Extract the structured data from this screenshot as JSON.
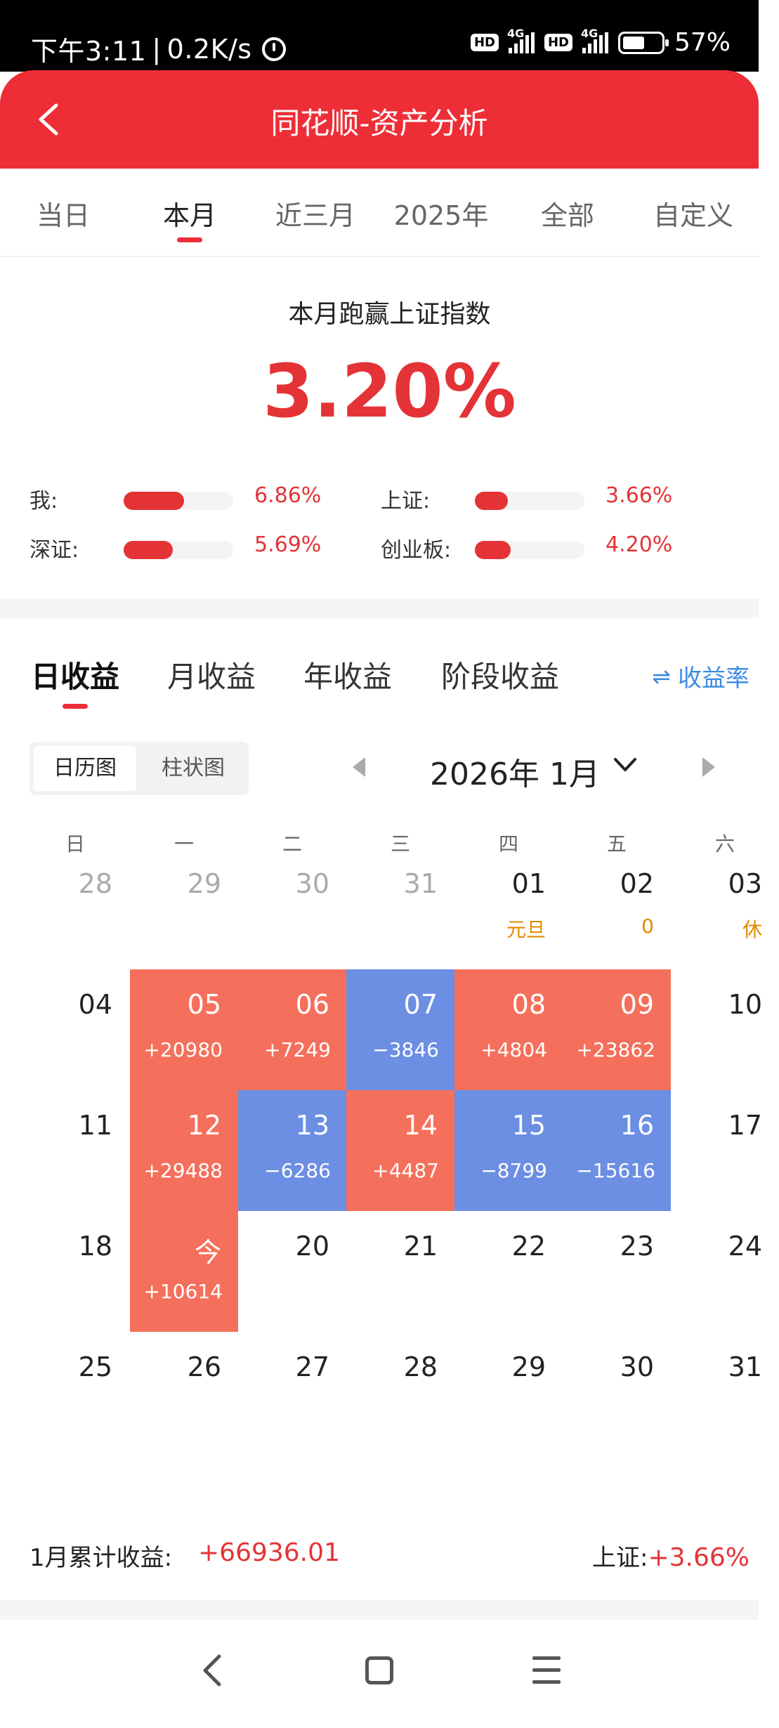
{
  "status_bar": {
    "time": "下午3:11",
    "separator": "|",
    "speed": "0.2K/s",
    "hd_label": "HD",
    "network_label": "4G",
    "battery_percent": "57%"
  },
  "header": {
    "title": "同花顺-资产分析"
  },
  "period_tabs": [
    "当日",
    "本月",
    "近三月",
    "2025年",
    "全部",
    "自定义"
  ],
  "period_active": "本月",
  "summary": {
    "heading": "本月跑赢上证指数",
    "value": "3.20%",
    "rows": [
      {
        "label": "我:",
        "value": "6.86%",
        "fill": 0.55
      },
      {
        "label": "上证:",
        "value": "3.66%",
        "fill": 0.3
      },
      {
        "label": "深证:",
        "value": "5.69%",
        "fill": 0.45
      },
      {
        "label": "创业板:",
        "value": "4.20%",
        "fill": 0.33
      }
    ]
  },
  "profit_tabs": [
    "日收益",
    "月收益",
    "年收益",
    "阶段收益"
  ],
  "profit_active": "日收益",
  "rate_toggle": {
    "icon": "swap-icon",
    "label": "收益率"
  },
  "view_toggle": [
    "日历图",
    "柱状图"
  ],
  "view_active": "日历图",
  "month_label": "2026年 1月",
  "weekdays": [
    "日",
    "一",
    "二",
    "三",
    "四",
    "五",
    "六"
  ],
  "calendar": [
    [
      {
        "num": "28",
        "muted": true
      },
      {
        "num": "29",
        "muted": true
      },
      {
        "num": "30",
        "muted": true
      },
      {
        "num": "31",
        "muted": true
      },
      {
        "num": "01",
        "sub": "元旦"
      },
      {
        "num": "02",
        "sub": "0"
      },
      {
        "num": "03",
        "sub": "休"
      }
    ],
    [
      {
        "num": "04"
      },
      {
        "num": "05",
        "pnl": "+20980",
        "dir": "up"
      },
      {
        "num": "06",
        "pnl": "+7249",
        "dir": "up"
      },
      {
        "num": "07",
        "pnl": "−3846",
        "dir": "down"
      },
      {
        "num": "08",
        "pnl": "+4804",
        "dir": "up"
      },
      {
        "num": "09",
        "pnl": "+23862",
        "dir": "up"
      },
      {
        "num": "10"
      }
    ],
    [
      {
        "num": "11"
      },
      {
        "num": "12",
        "pnl": "+29488",
        "dir": "up"
      },
      {
        "num": "13",
        "pnl": "−6286",
        "dir": "down"
      },
      {
        "num": "14",
        "pnl": "+4487",
        "dir": "up"
      },
      {
        "num": "15",
        "pnl": "−8799",
        "dir": "down"
      },
      {
        "num": "16",
        "pnl": "−15616",
        "dir": "down"
      },
      {
        "num": "17"
      }
    ],
    [
      {
        "num": "18"
      },
      {
        "num": "今",
        "pnl": "+10614",
        "dir": "up"
      },
      {
        "num": "20"
      },
      {
        "num": "21"
      },
      {
        "num": "22"
      },
      {
        "num": "23"
      },
      {
        "num": "24"
      }
    ],
    [
      {
        "num": "25"
      },
      {
        "num": "26"
      },
      {
        "num": "27"
      },
      {
        "num": "28"
      },
      {
        "num": "29"
      },
      {
        "num": "30"
      },
      {
        "num": "31"
      }
    ]
  ],
  "footer": {
    "month_total_label": "1月累计收益:",
    "month_total_value": "+66936.01",
    "index_label": "上证:",
    "index_value": "+3.66%"
  },
  "colors": {
    "accent": "#ee2e36",
    "up": "#f5705c",
    "down": "#6c8ee3",
    "holiday": "#e08b00",
    "link": "#3b8ae6"
  }
}
